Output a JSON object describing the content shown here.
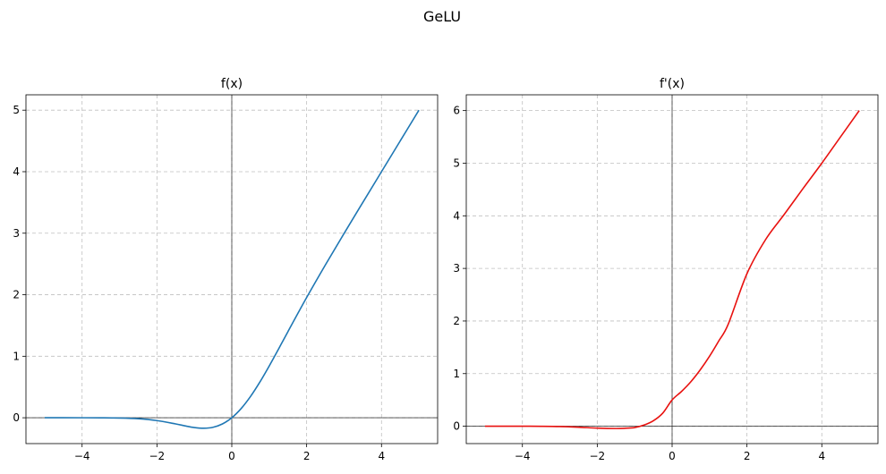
{
  "figure": {
    "title": "GeLU"
  },
  "chart_data": [
    {
      "type": "line",
      "title": "f(x)",
      "xlabel": "",
      "ylabel": "",
      "xlim": [
        -5.5,
        5.5
      ],
      "ylim": [
        -0.42,
        5.25
      ],
      "xticks": [
        -4,
        -2,
        0,
        2,
        4
      ],
      "yticks": [
        0,
        1,
        2,
        3,
        4,
        5
      ],
      "xtick_labels": [
        "−4",
        "−2",
        "0",
        "2",
        "4"
      ],
      "ytick_labels": [
        "0",
        "1",
        "2",
        "3",
        "4",
        "5"
      ],
      "grid": true,
      "series": [
        {
          "name": "f(x)",
          "color": "#1f77b4",
          "x": [
            -5.0,
            -4.5,
            -4.0,
            -3.5,
            -3.0,
            -2.5,
            -2.0,
            -1.5,
            -1.25,
            -1.0,
            -0.75,
            -0.5,
            -0.25,
            0.0,
            0.25,
            0.5,
            0.75,
            1.0,
            1.25,
            1.5,
            2.0,
            2.5,
            3.0,
            3.5,
            4.0,
            4.5,
            5.0
          ],
          "y": [
            0.0,
            0.0,
            -0.0001,
            -0.0008,
            -0.004,
            -0.0155,
            -0.0455,
            -0.1002,
            -0.132,
            -0.1587,
            -0.1702,
            -0.1543,
            -0.1003,
            0.0,
            0.1497,
            0.3457,
            0.5798,
            0.8413,
            1.118,
            1.3998,
            1.9545,
            2.4845,
            2.996,
            3.4992,
            3.9999,
            4.5,
            5.0
          ]
        }
      ]
    },
    {
      "type": "line",
      "title": "f'(x)",
      "xlabel": "",
      "ylabel": "",
      "xlim": [
        -5.5,
        5.5
      ],
      "ylim": [
        -0.33,
        6.3
      ],
      "xticks": [
        -4,
        -2,
        0,
        2,
        4
      ],
      "yticks": [
        0,
        1,
        2,
        3,
        4,
        5,
        6
      ],
      "xtick_labels": [
        "−4",
        "−2",
        "0",
        "2",
        "4"
      ],
      "ytick_labels": [
        "0",
        "1",
        "2",
        "3",
        "4",
        "5",
        "6"
      ],
      "grid": true,
      "series": [
        {
          "name": "f'(x)",
          "color": "#e8110f",
          "x": [
            -5.0,
            -4.5,
            -4.0,
            -3.5,
            -3.0,
            -2.5,
            -2.0,
            -1.5,
            -1.25,
            -1.0,
            -0.75,
            -0.5,
            -0.25,
            0.0,
            0.25,
            0.5,
            0.75,
            1.0,
            1.25,
            1.5,
            2.0,
            2.5,
            3.0,
            3.5,
            4.0,
            4.5,
            5.0
          ],
          "y": [
            0.0,
            0.0,
            -0.0001,
            -0.0012,
            -0.0059,
            -0.0178,
            -0.0353,
            -0.043,
            -0.038,
            -0.0253,
            0.022,
            0.1045,
            0.2495,
            0.5,
            0.66,
            0.845,
            1.07,
            1.33,
            1.625,
            1.94,
            2.9,
            3.55,
            4.03,
            4.52,
            5.0,
            5.5,
            6.0
          ]
        }
      ]
    }
  ]
}
